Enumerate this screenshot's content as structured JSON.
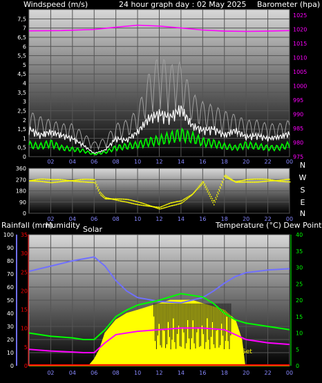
{
  "header": {
    "left_title": "Windspeed (m/s)",
    "center_title": "24 hour graph day : 02 May 2025",
    "right_title": "Barometer (hpa)"
  },
  "mid_header": {
    "left_label": "Rainfall (mm)",
    "center_label": "Humidity",
    "solar_label": "Solar",
    "right_label": "Temperature (°C) Dew Point (°C)"
  },
  "annotations": {
    "set_label": "Set"
  },
  "colors": {
    "wind": "#ffffff",
    "gust": "#a0a0a0",
    "windavg": "#00ff00",
    "baro": "#ff00ff",
    "dir": "#ffff00",
    "humidity": "#7070ff",
    "temp": "#00ff00",
    "dew": "#ff00ff",
    "solar": "#ffff00",
    "rain": "#ff0000",
    "rainaxis": "#ff0000",
    "baroaxis": "#ff00ff",
    "tempaxis": "#00ff00",
    "humaxis": "#7070ff"
  },
  "chart_data": [
    {
      "type": "line",
      "name": "wind-barometer",
      "x_ticks": [
        "02",
        "04",
        "06",
        "08",
        "10",
        "12",
        "14",
        "16",
        "18",
        "20",
        "22",
        "00"
      ],
      "y_left_ticks": [
        "0",
        "0,5",
        "1",
        "1,5",
        "2",
        "2,5",
        "3",
        "3,5",
        "4",
        "4,5",
        "5",
        "5,5",
        "6",
        "6,5",
        "7",
        "7,5"
      ],
      "y_left_range": [
        0,
        8
      ],
      "y_right_ticks": [
        "975",
        "980",
        "985",
        "990",
        "995",
        "1000",
        "1005",
        "1010",
        "1015",
        "1020",
        "1025"
      ],
      "y_right_range": [
        975,
        1027
      ],
      "series": [
        {
          "key": "wind",
          "points": [
            [
              0,
              1.7
            ],
            [
              1,
              1.3
            ],
            [
              2,
              1.5
            ],
            [
              3,
              1.3
            ],
            [
              4,
              1.1
            ],
            [
              5,
              0.7
            ],
            [
              6,
              0.2
            ],
            [
              7,
              0.4
            ],
            [
              8,
              1.1
            ],
            [
              9,
              1.0
            ],
            [
              10,
              1.5
            ],
            [
              11,
              2.3
            ],
            [
              12,
              2.6
            ],
            [
              13,
              2.4
            ],
            [
              14,
              2.9
            ],
            [
              15,
              1.9
            ],
            [
              16,
              1.6
            ],
            [
              17,
              1.7
            ],
            [
              18,
              1.3
            ],
            [
              19,
              1.6
            ],
            [
              20,
              1.2
            ],
            [
              21,
              1.3
            ],
            [
              22,
              1.1
            ],
            [
              23,
              1.2
            ],
            [
              24,
              1.4
            ]
          ]
        },
        {
          "key": "gust",
          "points": [
            [
              0,
              2.5
            ],
            [
              1,
              2.2
            ],
            [
              2,
              2.0
            ],
            [
              3,
              1.8
            ],
            [
              4,
              1.8
            ],
            [
              5,
              1.3
            ],
            [
              6,
              0.8
            ],
            [
              7,
              1.0
            ],
            [
              8,
              1.8
            ],
            [
              9,
              2.0
            ],
            [
              10,
              2.6
            ],
            [
              11,
              4.5
            ],
            [
              12,
              5.6
            ],
            [
              13,
              5.0
            ],
            [
              14,
              5.2
            ],
            [
              15,
              3.5
            ],
            [
              16,
              3.0
            ],
            [
              17,
              2.8
            ],
            [
              18,
              2.5
            ],
            [
              19,
              2.3
            ],
            [
              20,
              2.0
            ],
            [
              21,
              2.0
            ],
            [
              22,
              1.8
            ],
            [
              23,
              1.8
            ],
            [
              24,
              2.0
            ]
          ]
        },
        {
          "key": "windavg",
          "points": [
            [
              0,
              0.8
            ],
            [
              1,
              0.7
            ],
            [
              2,
              0.9
            ],
            [
              3,
              0.6
            ],
            [
              4,
              0.5
            ],
            [
              5,
              0.4
            ],
            [
              6,
              0.15
            ],
            [
              7,
              0.3
            ],
            [
              8,
              0.6
            ],
            [
              9,
              0.7
            ],
            [
              10,
              0.8
            ],
            [
              11,
              1.0
            ],
            [
              12,
              1.1
            ],
            [
              13,
              1.3
            ],
            [
              14,
              1.5
            ],
            [
              15,
              1.3
            ],
            [
              16,
              1.0
            ],
            [
              17,
              0.9
            ],
            [
              18,
              0.7
            ],
            [
              19,
              0.6
            ],
            [
              20,
              0.8
            ],
            [
              21,
              0.7
            ],
            [
              22,
              0.6
            ],
            [
              23,
              0.6
            ],
            [
              24,
              0.8
            ]
          ]
        },
        {
          "key": "baro",
          "points": [
            [
              0,
              1019.5
            ],
            [
              3,
              1019.6
            ],
            [
              6,
              1020.0
            ],
            [
              8,
              1020.8
            ],
            [
              10,
              1021.5
            ],
            [
              12,
              1021.2
            ],
            [
              14,
              1020.5
            ],
            [
              16,
              1019.8
            ],
            [
              18,
              1019.4
            ],
            [
              20,
              1019.3
            ],
            [
              22,
              1019.4
            ],
            [
              24,
              1019.6
            ]
          ]
        }
      ]
    },
    {
      "type": "scatter",
      "name": "wind-direction",
      "x_ticks": [
        "02",
        "04",
        "06",
        "08",
        "10",
        "12",
        "14",
        "16",
        "18",
        "20",
        "22",
        "00"
      ],
      "y_ticks": [
        "0",
        "90",
        "180",
        "270",
        "360"
      ],
      "y_range": [
        0,
        360
      ],
      "compass_labels": [
        "N",
        "W",
        "S",
        "E",
        "N"
      ],
      "series": [
        {
          "key": "dir",
          "points": [
            [
              0,
              260
            ],
            [
              1,
              265
            ],
            [
              2,
              258
            ],
            [
              3,
              262
            ],
            [
              4,
              260
            ],
            [
              5,
              262
            ],
            [
              6,
              258
            ],
            [
              6.5,
              160
            ],
            [
              7,
              120
            ],
            [
              8,
              110
            ],
            [
              9,
              100
            ],
            [
              10,
              80
            ],
            [
              11,
              60
            ],
            [
              12,
              40
            ],
            [
              13,
              70
            ],
            [
              14,
              90
            ],
            [
              15,
              150
            ],
            [
              16,
              250
            ],
            [
              17,
              80
            ],
            [
              18,
              300
            ],
            [
              19,
              250
            ],
            [
              20,
              260
            ],
            [
              21,
              262
            ],
            [
              22,
              265
            ],
            [
              23,
              260
            ],
            [
              24,
              262
            ]
          ]
        }
      ]
    },
    {
      "type": "line",
      "name": "humidity-temperature-solar-rain",
      "x_ticks": [
        "02",
        "04",
        "06",
        "08",
        "10",
        "12",
        "14",
        "16",
        "18",
        "20",
        "22",
        "00"
      ],
      "y_hum_ticks": [
        "0",
        "10",
        "20",
        "30",
        "40",
        "50",
        "60",
        "70",
        "80",
        "90",
        "100"
      ],
      "y_hum_range": [
        0,
        100
      ],
      "y_rain_ticks": [
        "0",
        "5",
        "10",
        "15",
        "20",
        "25",
        "30",
        "35"
      ],
      "y_rain_range": [
        0,
        35
      ],
      "y_temp_ticks": [
        "0",
        "5",
        "10",
        "15",
        "20",
        "25",
        "30",
        "35",
        "40"
      ],
      "y_temp_range": [
        0,
        40
      ],
      "series": [
        {
          "key": "humidity",
          "points": [
            [
              0,
              72
            ],
            [
              2,
              76
            ],
            [
              4,
              80
            ],
            [
              6,
              83
            ],
            [
              7,
              76
            ],
            [
              8,
              65
            ],
            [
              9,
              57
            ],
            [
              10,
              52
            ],
            [
              12,
              49
            ],
            [
              14,
              48
            ],
            [
              16,
              52
            ],
            [
              17,
              57
            ],
            [
              18,
              63
            ],
            [
              19,
              68
            ],
            [
              20,
              71
            ],
            [
              22,
              73
            ],
            [
              24,
              74
            ]
          ]
        },
        {
          "key": "temp",
          "points": [
            [
              0,
              10
            ],
            [
              2,
              9
            ],
            [
              4,
              8.5
            ],
            [
              5,
              8
            ],
            [
              6,
              8
            ],
            [
              7,
              11
            ],
            [
              8,
              15
            ],
            [
              9,
              17
            ],
            [
              10,
              18.5
            ],
            [
              12,
              20
            ],
            [
              14,
              22
            ],
            [
              16,
              21
            ],
            [
              17,
              19
            ],
            [
              18,
              16
            ],
            [
              19,
              14
            ],
            [
              20,
              13
            ],
            [
              22,
              12
            ],
            [
              24,
              11
            ]
          ]
        },
        {
          "key": "dew",
          "points": [
            [
              0,
              5
            ],
            [
              2,
              4.5
            ],
            [
              4,
              4.2
            ],
            [
              5,
              4
            ],
            [
              6,
              4
            ],
            [
              7,
              7
            ],
            [
              8,
              9.5
            ],
            [
              10,
              10.5
            ],
            [
              12,
              11
            ],
            [
              14,
              11.5
            ],
            [
              16,
              11.5
            ],
            [
              18,
              11
            ],
            [
              19,
              9.5
            ],
            [
              20,
              8
            ],
            [
              22,
              7
            ],
            [
              24,
              6.5
            ]
          ]
        },
        {
          "key": "solar",
          "points": [
            [
              0,
              0
            ],
            [
              5.5,
              0
            ],
            [
              6,
              2
            ],
            [
              6.5,
              5
            ],
            [
              7,
              10
            ],
            [
              8,
              14
            ],
            [
              9,
              16
            ],
            [
              10,
              17
            ],
            [
              11,
              18
            ],
            [
              12,
              19
            ],
            [
              13,
              20
            ],
            [
              14,
              20
            ],
            [
              15,
              20
            ],
            [
              16,
              19
            ],
            [
              17,
              18
            ],
            [
              18,
              17
            ],
            [
              19,
              14
            ],
            [
              19.6,
              8
            ],
            [
              19.9,
              0
            ],
            [
              24,
              0
            ]
          ]
        },
        {
          "key": "rain",
          "points": [
            [
              0,
              0.2
            ],
            [
              24,
              0.2
            ]
          ]
        }
      ]
    }
  ]
}
